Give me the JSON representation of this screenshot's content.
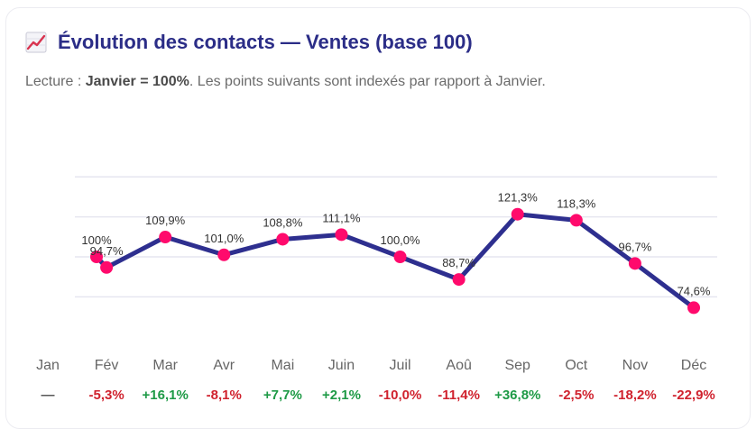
{
  "header": {
    "title": "Évolution des contacts — Ventes (base 100)",
    "icon": "chart-increasing-icon",
    "subtitle_prefix": "Lecture : ",
    "subtitle_bold": "Janvier = 100%",
    "subtitle_suffix": ". Les points suivants sont indexés par rapport à Janvier."
  },
  "colors": {
    "line": "#2e2f8f",
    "marker": "#ff0a6c",
    "positive": "#1e9a46",
    "negative": "#d0222e",
    "neutral": "#555555",
    "grid": "#e6e6f0"
  },
  "chart_data": {
    "type": "line",
    "categories": [
      "Jan",
      "Fév",
      "Mar",
      "Avr",
      "Mai",
      "Juin",
      "Juil",
      "Aoû",
      "Sep",
      "Oct",
      "Nov",
      "Déc"
    ],
    "series": [
      {
        "values": [
          100,
          94.7,
          109.9,
          101.0,
          108.8,
          111.1,
          100.0,
          88.7,
          121.3,
          118.3,
          96.7,
          74.6
        ],
        "labels": [
          "100%",
          "94,7%",
          "109,9%",
          "101,0%",
          "108,8%",
          "111,1%",
          "100,0%",
          "88,7%",
          "121,3%",
          "118,3%",
          "96,7%",
          "74,6%"
        ]
      }
    ],
    "deltas": [
      "—",
      "-5,3%",
      "+16,1%",
      "-8,1%",
      "+7,7%",
      "+2,1%",
      "-10,0%",
      "-11,4%",
      "+36,8%",
      "-2,5%",
      "-18,2%",
      "-22,9%"
    ],
    "delta_signs": [
      "neutral",
      "negative",
      "positive",
      "negative",
      "positive",
      "positive",
      "negative",
      "negative",
      "positive",
      "negative",
      "negative",
      "negative"
    ],
    "ylim": [
      50,
      150
    ],
    "grid": true,
    "legend": "none"
  }
}
